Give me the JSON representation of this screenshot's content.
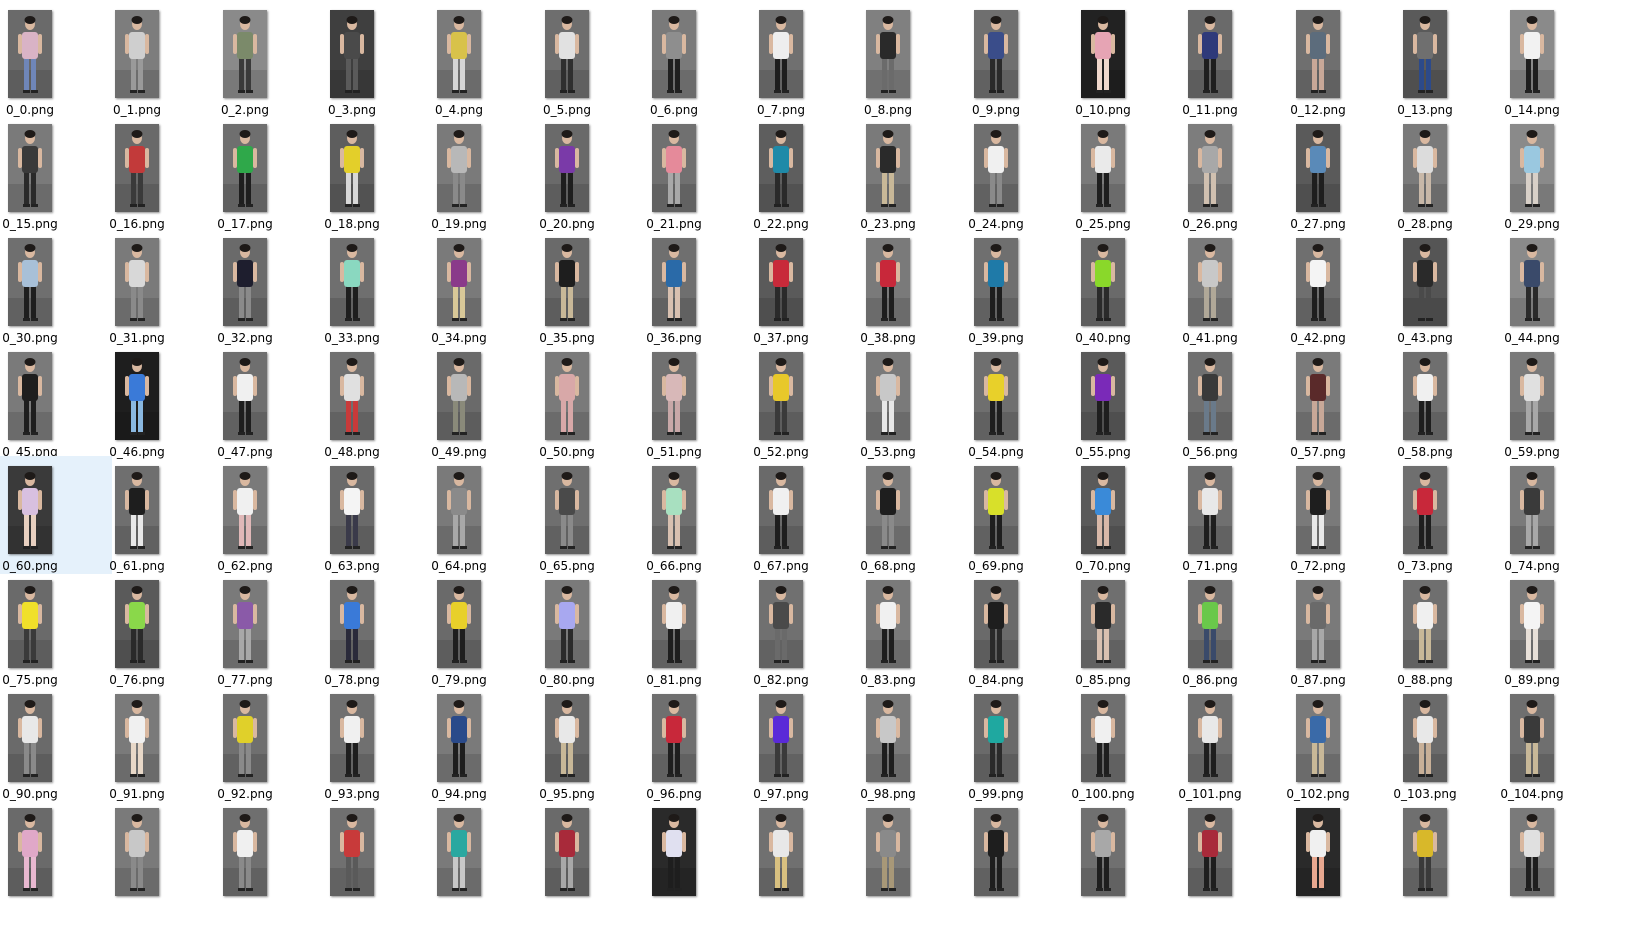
{
  "files": [
    {
      "name": "0_0.png",
      "shirt": "#d9b3c6",
      "pants": "#6f86b8",
      "bg": "#6a6a6a"
    },
    {
      "name": "0_1.png",
      "shirt": "#cfcfcf",
      "pants": "#9a9a9a",
      "bg": "#7d7d7d"
    },
    {
      "name": "0_2.png",
      "shirt": "#7b8a6a",
      "pants": "#3a3a3a",
      "bg": "#8a8a8a"
    },
    {
      "name": "0_3.png",
      "shirt": "#4a4a4a",
      "pants": "#5a5a5a",
      "bg": "#3f3f3f"
    },
    {
      "name": "0_4.png",
      "shirt": "#d8c24a",
      "pants": "#d6d6d6",
      "bg": "#7a7a7a"
    },
    {
      "name": "0_5.png",
      "shirt": "#e1e1e1",
      "pants": "#2f2f2f",
      "bg": "#6e6e6e"
    },
    {
      "name": "0_6.png",
      "shirt": "#8e8e8e",
      "pants": "#1f1f1f",
      "bg": "#7a7a7a"
    },
    {
      "name": "0_7.png",
      "shirt": "#eeeeee",
      "pants": "#1e1e1e",
      "bg": "#707070"
    },
    {
      "name": "0_8.png",
      "shirt": "#2a2a2a",
      "pants": "#6b6b6b",
      "bg": "#808080"
    },
    {
      "name": "0_9.png",
      "shirt": "#3a4d8a",
      "pants": "#2a2a2a",
      "bg": "#6f6f6f"
    },
    {
      "name": "0_10.png",
      "shirt": "#e6a4b4",
      "pants": "#f0d8cc",
      "bg": "#222222"
    },
    {
      "name": "0_11.png",
      "shirt": "#2f3a7a",
      "pants": "#1e1e1e",
      "bg": "#6a6a6a"
    },
    {
      "name": "0_12.png",
      "shirt": "#5c6c7c",
      "pants": "#c8a898",
      "bg": "#6f6f6f"
    },
    {
      "name": "0_13.png",
      "shirt": "#6f6f6f",
      "pants": "#2c4a8a",
      "bg": "#5a5a5a"
    },
    {
      "name": "0_14.png",
      "shirt": "#f2f2f2",
      "pants": "#1e1e1e",
      "bg": "#8a8a8a"
    },
    {
      "name": "0_15.png",
      "shirt": "#3a3a3a",
      "pants": "#2a2a2a",
      "bg": "#7a7a7a"
    },
    {
      "name": "0_16.png",
      "shirt": "#c23a3a",
      "pants": "#3a3a3a",
      "bg": "#6a6a6a"
    },
    {
      "name": "0_17.png",
      "shirt": "#2fa84a",
      "pants": "#1e1e1e",
      "bg": "#6f6f6f"
    },
    {
      "name": "0_18.png",
      "shirt": "#e3cf2a",
      "pants": "#d8d8d8",
      "bg": "#5e5e5e"
    },
    {
      "name": "0_19.png",
      "shirt": "#b8b8b8",
      "pants": "#8a8a8a",
      "bg": "#7a7a7a"
    },
    {
      "name": "0_20.png",
      "shirt": "#7a3aa8",
      "pants": "#1e1e1e",
      "bg": "#6a6a6a"
    },
    {
      "name": "0_21.png",
      "shirt": "#e58a9a",
      "pants": "#a8a8a8",
      "bg": "#707070"
    },
    {
      "name": "0_22.png",
      "shirt": "#1f8aa8",
      "pants": "#2a2a2a",
      "bg": "#5e5e5e"
    },
    {
      "name": "0_23.png",
      "shirt": "#2a2a2a",
      "pants": "#c8b898",
      "bg": "#7a7a7a"
    },
    {
      "name": "0_24.png",
      "shirt": "#f0f0f0",
      "pants": "#8a8a8a",
      "bg": "#6f6f6f"
    },
    {
      "name": "0_25.png",
      "shirt": "#eaeaea",
      "pants": "#1e1e1e",
      "bg": "#7a7a7a"
    },
    {
      "name": "0_26.png",
      "shirt": "#a8a8a8",
      "pants": "#d0c0b0",
      "bg": "#7d7d7d"
    },
    {
      "name": "0_27.png",
      "shirt": "#5a8ab8",
      "pants": "#1e1e1e",
      "bg": "#5a5a5a"
    },
    {
      "name": "0_28.png",
      "shirt": "#dcdcdc",
      "pants": "#c8b8a8",
      "bg": "#7a7a7a"
    },
    {
      "name": "0_29.png",
      "shirt": "#9ac8e0",
      "pants": "#d8d0c8",
      "bg": "#8a8a8a"
    },
    {
      "name": "0_30.png",
      "shirt": "#a8c0d8",
      "pants": "#1e1e1e",
      "bg": "#6f6f6f"
    },
    {
      "name": "0_31.png",
      "shirt": "#d8d8d8",
      "pants": "#8a8a8a",
      "bg": "#7a7a7a"
    },
    {
      "name": "0_32.png",
      "shirt": "#1e1e2e",
      "pants": "#8a8a8a",
      "bg": "#6a6a6a"
    },
    {
      "name": "0_33.png",
      "shirt": "#8ad8c0",
      "pants": "#1e1e1e",
      "bg": "#6f6f6f"
    },
    {
      "name": "0_34.png",
      "shirt": "#8a3a8a",
      "pants": "#d8c898",
      "bg": "#7a7a7a"
    },
    {
      "name": "0_35.png",
      "shirt": "#1e1e1e",
      "pants": "#c8b898",
      "bg": "#6a6a6a"
    },
    {
      "name": "0_36.png",
      "shirt": "#2a6aa8",
      "pants": "#d8c0b0",
      "bg": "#6f6f6f"
    },
    {
      "name": "0_37.png",
      "shirt": "#c82a3a",
      "pants": "#2a2a2a",
      "bg": "#5a5a5a"
    },
    {
      "name": "0_38.png",
      "shirt": "#c8283a",
      "pants": "#1e1e1e",
      "bg": "#7a7a7a"
    },
    {
      "name": "0_39.png",
      "shirt": "#1f7aa8",
      "pants": "#1e1e1e",
      "bg": "#6f6f6f"
    },
    {
      "name": "0_40.png",
      "shirt": "#8ad82a",
      "pants": "#2a2a2a",
      "bg": "#6a6a6a"
    },
    {
      "name": "0_41.png",
      "shirt": "#c8c8c8",
      "pants": "#b0a898",
      "bg": "#7a7a7a"
    },
    {
      "name": "0_42.png",
      "shirt": "#f4f4f4",
      "pants": "#1e1e1e",
      "bg": "#6f6f6f"
    },
    {
      "name": "0_43.png",
      "shirt": "#2a2a2a",
      "pants": "#4a4a4a",
      "bg": "#555555"
    },
    {
      "name": "0_44.png",
      "shirt": "#3a4a6a",
      "pants": "#2a2a2a",
      "bg": "#8a8a8a"
    },
    {
      "name": "0_45.png",
      "shirt": "#1e1e1e",
      "pants": "#1e1e1e",
      "bg": "#7a7a7a"
    },
    {
      "name": "0_46.png",
      "shirt": "#3a7ad8",
      "pants": "#8ab8e0",
      "bg": "#1e1e1e"
    },
    {
      "name": "0_47.png",
      "shirt": "#f0f0f0",
      "pants": "#1e1e1e",
      "bg": "#6f6f6f"
    },
    {
      "name": "0_48.png",
      "shirt": "#e0e0e0",
      "pants": "#c83a3a",
      "bg": "#707070"
    },
    {
      "name": "0_49.png",
      "shirt": "#b8b8b8",
      "pants": "#8a8a7a",
      "bg": "#6a6a6a"
    },
    {
      "name": "0_50.png",
      "shirt": "#d8a8a8",
      "pants": "#d8a8a8",
      "bg": "#7a7a7a"
    },
    {
      "name": "0_51.png",
      "shirt": "#d8b8b8",
      "pants": "#c8a8a8",
      "bg": "#707070"
    },
    {
      "name": "0_52.png",
      "shirt": "#e8c82a",
      "pants": "#3a3a3a",
      "bg": "#6a6a6a"
    },
    {
      "name": "0_53.png",
      "shirt": "#c8c8c8",
      "pants": "#e8e8e8",
      "bg": "#7a7a7a"
    },
    {
      "name": "0_54.png",
      "shirt": "#e8d02a",
      "pants": "#1e1e1e",
      "bg": "#6f6f6f"
    },
    {
      "name": "0_55.png",
      "shirt": "#7a2ab8",
      "pants": "#1e1e1e",
      "bg": "#5a5a5a"
    },
    {
      "name": "0_56.png",
      "shirt": "#3a3a3a",
      "pants": "#6a7a8a",
      "bg": "#707070"
    },
    {
      "name": "0_57.png",
      "shirt": "#5a2a2a",
      "pants": "#c8a898",
      "bg": "#7a7a7a"
    },
    {
      "name": "0_58.png",
      "shirt": "#f0f0f0",
      "pants": "#1e1e1e",
      "bg": "#6f6f6f"
    },
    {
      "name": "0_59.png",
      "shirt": "#e0e0e0",
      "pants": "#a8a8a8",
      "bg": "#7a7a7a"
    },
    {
      "name": "0_60.png",
      "shirt": "#d8c0e0",
      "pants": "#e8d0c0",
      "bg": "#3a3a3a"
    },
    {
      "name": "0_61.png",
      "shirt": "#1e1e1e",
      "pants": "#e8e8e8",
      "bg": "#6f6f6f"
    },
    {
      "name": "0_62.png",
      "shirt": "#f0f0f0",
      "pants": "#e0b8b8",
      "bg": "#7a7a7a"
    },
    {
      "name": "0_63.png",
      "shirt": "#f4f4f4",
      "pants": "#3a3a4a",
      "bg": "#6a6a6a"
    },
    {
      "name": "0_64.png",
      "shirt": "#8a8a8a",
      "pants": "#a8a8a8",
      "bg": "#7a7a7a"
    },
    {
      "name": "0_65.png",
      "shirt": "#4a4a4a",
      "pants": "#8a8a8a",
      "bg": "#6f6f6f"
    },
    {
      "name": "0_66.png",
      "shirt": "#a8e0c0",
      "pants": "#d8c0b0",
      "bg": "#707070"
    },
    {
      "name": "0_67.png",
      "shirt": "#f0f0f0",
      "pants": "#1e1e1e",
      "bg": "#6a6a6a"
    },
    {
      "name": "0_68.png",
      "shirt": "#1e1e1e",
      "pants": "#8a8a8a",
      "bg": "#7a7a7a"
    },
    {
      "name": "0_69.png",
      "shirt": "#d8e02a",
      "pants": "#1e1e1e",
      "bg": "#6f6f6f"
    },
    {
      "name": "0_70.png",
      "shirt": "#3a8ad8",
      "pants": "#d8b8a8",
      "bg": "#5a5a5a"
    },
    {
      "name": "0_71.png",
      "shirt": "#e8e8e8",
      "pants": "#1e1e1e",
      "bg": "#707070"
    },
    {
      "name": "0_72.png",
      "shirt": "#1e1e1e",
      "pants": "#e8e8e8",
      "bg": "#7a7a7a"
    },
    {
      "name": "0_73.png",
      "shirt": "#c8283a",
      "pants": "#1e1e1e",
      "bg": "#6f6f6f"
    },
    {
      "name": "0_74.png",
      "shirt": "#3a3a3a",
      "pants": "#a8a8a8",
      "bg": "#7a7a7a"
    },
    {
      "name": "0_75.png",
      "shirt": "#f0e02a",
      "pants": "#3a3a3a",
      "bg": "#6a6a6a"
    },
    {
      "name": "0_76.png",
      "shirt": "#8ad84a",
      "pants": "#2a2a2a",
      "bg": "#5a5a5a"
    },
    {
      "name": "0_77.png",
      "shirt": "#8a5aa8",
      "pants": "#a8a8a8",
      "bg": "#7a7a7a"
    },
    {
      "name": "0_78.png",
      "shirt": "#3a7ad8",
      "pants": "#2a2a3a",
      "bg": "#6f6f6f"
    },
    {
      "name": "0_79.png",
      "shirt": "#e8d02a",
      "pants": "#1e1e1e",
      "bg": "#6a6a6a"
    },
    {
      "name": "0_80.png",
      "shirt": "#a8a8f0",
      "pants": "#2a2a2a",
      "bg": "#7a7a7a"
    },
    {
      "name": "0_81.png",
      "shirt": "#f0f0f0",
      "pants": "#1e1e1e",
      "bg": "#6f6f6f"
    },
    {
      "name": "0_82.png",
      "shirt": "#4a4a4a",
      "pants": "#6a6a6a",
      "bg": "#707070"
    },
    {
      "name": "0_83.png",
      "shirt": "#f0f0f0",
      "pants": "#1e1e1e",
      "bg": "#7a7a7a"
    },
    {
      "name": "0_84.png",
      "shirt": "#1e1e1e",
      "pants": "#2a2a2a",
      "bg": "#6a6a6a"
    },
    {
      "name": "0_85.png",
      "shirt": "#2a2a2a",
      "pants": "#d8c0b0",
      "bg": "#6f6f6f"
    },
    {
      "name": "0_86.png",
      "shirt": "#6ac84a",
      "pants": "#3a4a6a",
      "bg": "#707070"
    },
    {
      "name": "0_87.png",
      "shirt": "#6a6a6a",
      "pants": "#a8a8a8",
      "bg": "#7a7a7a"
    },
    {
      "name": "0_88.png",
      "shirt": "#f0f0f0",
      "pants": "#c8b898",
      "bg": "#6f6f6f"
    },
    {
      "name": "0_89.png",
      "shirt": "#f4f4f4",
      "pants": "#e8e0d8",
      "bg": "#7a7a7a"
    },
    {
      "name": "0_90.png",
      "shirt": "#e8e8e8",
      "pants": "#8a8a8a",
      "bg": "#6a6a6a"
    },
    {
      "name": "0_91.png",
      "shirt": "#f0f0f0",
      "pants": "#e8d8c8",
      "bg": "#7a7a7a"
    },
    {
      "name": "0_92.png",
      "shirt": "#e0d02a",
      "pants": "#8a8a8a",
      "bg": "#6f6f6f"
    },
    {
      "name": "0_93.png",
      "shirt": "#f0f0f0",
      "pants": "#1e1e1e",
      "bg": "#707070"
    },
    {
      "name": "0_94.png",
      "shirt": "#2a4a8a",
      "pants": "#1e1e1e",
      "bg": "#7a7a7a"
    },
    {
      "name": "0_95.png",
      "shirt": "#e8e8e8",
      "pants": "#c8b898",
      "bg": "#6a6a6a"
    },
    {
      "name": "0_96.png",
      "shirt": "#c8283a",
      "pants": "#1e1e1e",
      "bg": "#6f6f6f"
    },
    {
      "name": "0_97.png",
      "shirt": "#5a2ad8",
      "pants": "#3a3a3a",
      "bg": "#707070"
    },
    {
      "name": "0_98.png",
      "shirt": "#c8c8c8",
      "pants": "#1e1e1e",
      "bg": "#7a7a7a"
    },
    {
      "name": "0_99.png",
      "shirt": "#1fa8a0",
      "pants": "#2a2a2a",
      "bg": "#6a6a6a"
    },
    {
      "name": "0_100.png",
      "shirt": "#f0f0f0",
      "pants": "#1e1e1e",
      "bg": "#6f6f6f"
    },
    {
      "name": "0_101.png",
      "shirt": "#e8e8e8",
      "pants": "#1e1e1e",
      "bg": "#707070"
    },
    {
      "name": "0_102.png",
      "shirt": "#3a6aa8",
      "pants": "#c8b898",
      "bg": "#7a7a7a"
    },
    {
      "name": "0_103.png",
      "shirt": "#e8e8e8",
      "pants": "#c8b098",
      "bg": "#6a6a6a"
    },
    {
      "name": "0_104.png",
      "shirt": "#3a3a3a",
      "pants": "#c8b898",
      "bg": "#6f6f6f"
    },
    {
      "name": "",
      "shirt": "#e0a8c8",
      "pants": "#e8b8d0",
      "bg": "#6a6a6a"
    },
    {
      "name": "",
      "shirt": "#c8c8c8",
      "pants": "#8a8a8a",
      "bg": "#7a7a7a"
    },
    {
      "name": "",
      "shirt": "#f0f0f0",
      "pants": "#8a8a8a",
      "bg": "#6f6f6f"
    },
    {
      "name": "",
      "shirt": "#c83a3a",
      "pants": "#5a5a5a",
      "bg": "#707070"
    },
    {
      "name": "",
      "shirt": "#2aa8a0",
      "pants": "#c8c8c8",
      "bg": "#7a7a7a"
    },
    {
      "name": "",
      "shirt": "#a82a3a",
      "pants": "#a8a8a8",
      "bg": "#6a6a6a"
    },
    {
      "name": "",
      "shirt": "#e0e0f0",
      "pants": "#1e1e1e",
      "bg": "#2a2a2a"
    },
    {
      "name": "",
      "shirt": "#e8e8e8",
      "pants": "#d8c080",
      "bg": "#707070"
    },
    {
      "name": "",
      "shirt": "#8a8a8a",
      "pants": "#a89878",
      "bg": "#7a7a7a"
    },
    {
      "name": "",
      "shirt": "#1e1e1e",
      "pants": "#1e1e1e",
      "bg": "#6f6f6f"
    },
    {
      "name": "",
      "shirt": "#a8a8a8",
      "pants": "#1e1e1e",
      "bg": "#707070"
    },
    {
      "name": "",
      "shirt": "#a82a3a",
      "pants": "#1e1e1e",
      "bg": "#6a6a6a"
    },
    {
      "name": "",
      "shirt": "#f0f0f0",
      "pants": "#e8a890",
      "bg": "#2a2a2a"
    },
    {
      "name": "",
      "shirt": "#d8b82a",
      "pants": "#3a3a3a",
      "bg": "#6f6f6f"
    },
    {
      "name": "",
      "shirt": "#e0e0e0",
      "pants": "#1e1e1e",
      "bg": "#7a7a7a"
    }
  ],
  "selected_file": "0_60.png",
  "colors": {
    "selection": "#e5f1fb",
    "label_text": "#000000",
    "skin": "#d9b8a0",
    "hair": "#1e1a18"
  }
}
